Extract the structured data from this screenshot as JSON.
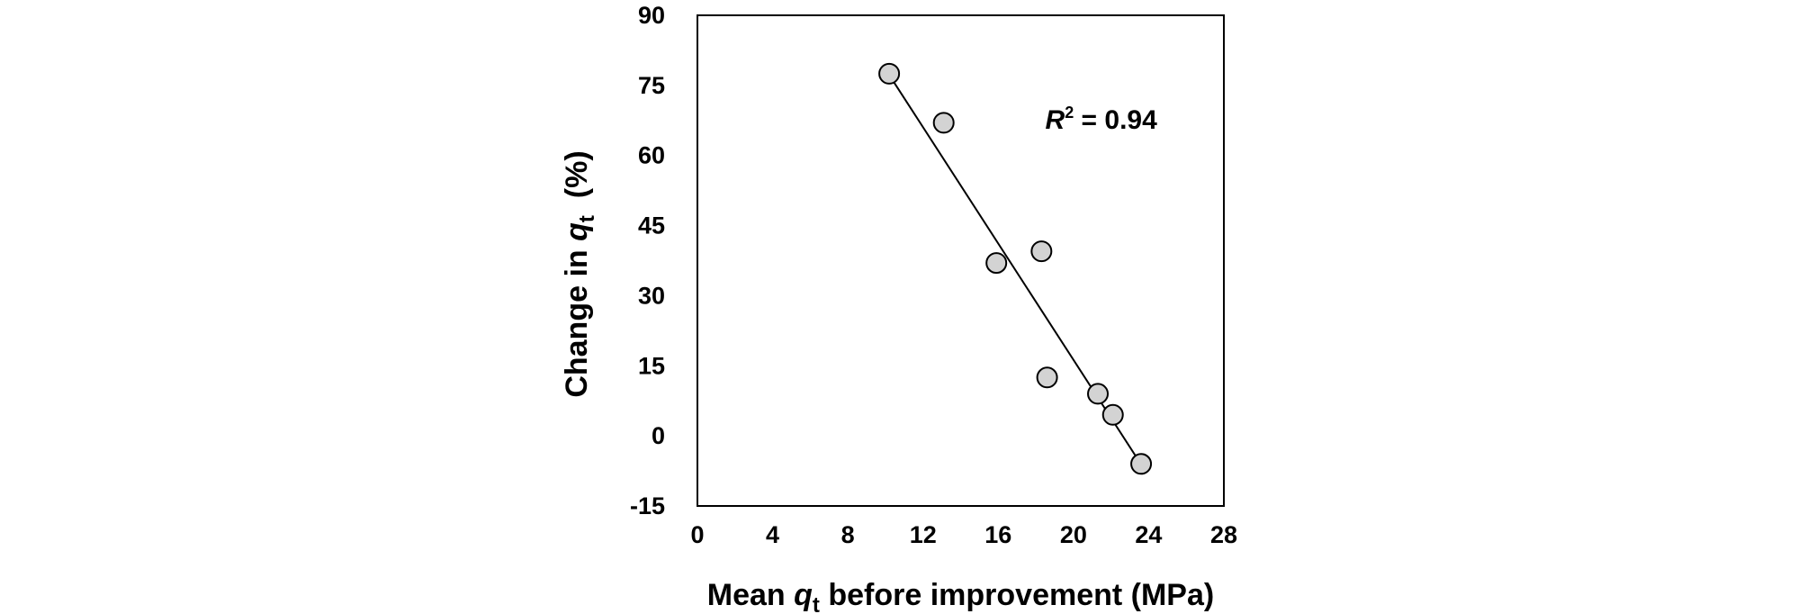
{
  "chart_data": {
    "type": "scatter",
    "xlim": [
      0,
      28
    ],
    "ylim": [
      -15,
      90
    ],
    "x_ticks": [
      0,
      4,
      8,
      12,
      16,
      20,
      24,
      28
    ],
    "y_ticks": [
      -15,
      0,
      15,
      30,
      45,
      60,
      75,
      90
    ],
    "xlabel": {
      "pre": "Mean ",
      "var": "q",
      "sub": "t",
      "post": " before improvement (MPa)"
    },
    "ylabel": {
      "pre": "Change in ",
      "var": "q",
      "sub": "t",
      "post": "  (%)"
    },
    "grid": false,
    "points": [
      {
        "x": 10.2,
        "y": 77.5
      },
      {
        "x": 13.1,
        "y": 67
      },
      {
        "x": 15.9,
        "y": 37
      },
      {
        "x": 18.3,
        "y": 39.5
      },
      {
        "x": 18.6,
        "y": 12.5
      },
      {
        "x": 21.3,
        "y": 9
      },
      {
        "x": 22.1,
        "y": 4.5
      },
      {
        "x": 23.6,
        "y": -6
      }
    ],
    "trendline": {
      "x1": 10.4,
      "y1": 76,
      "x2": 23.5,
      "y2": -5.5
    },
    "annotation": {
      "var": "R",
      "sup": "2",
      "text": " = 0.94",
      "x": 18.5,
      "y": 68
    },
    "marker_fill": "#d3d3d3",
    "marker_stroke": "#000000"
  }
}
